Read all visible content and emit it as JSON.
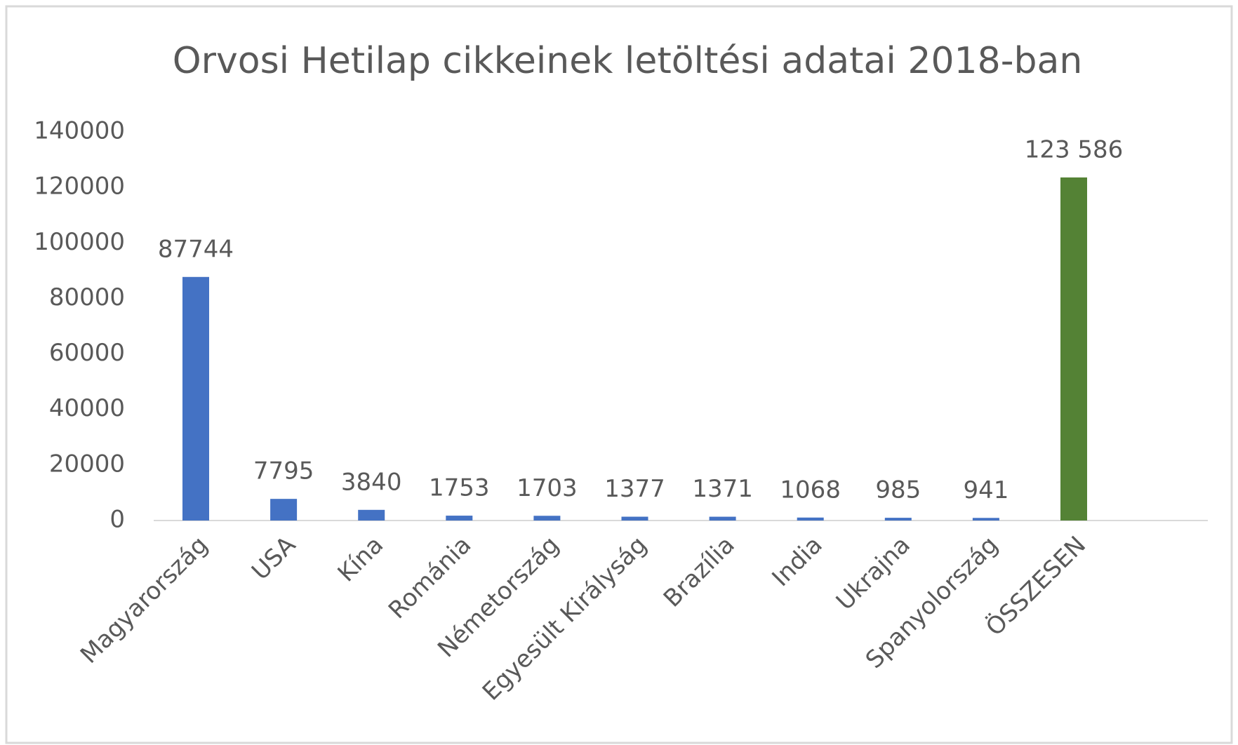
{
  "chart_data": {
    "type": "bar",
    "title": "Orvosi Hetilap cikkeinek letöltési adatai 2018-ban",
    "categories": [
      "Magyarország",
      "USA",
      "Kína",
      "Románia",
      "Németország",
      "Egyesült Királyság",
      "Brazília",
      "India",
      "Ukrajna",
      "Spanyolország",
      "ÖSSZESEN"
    ],
    "values": [
      87744,
      7795,
      3840,
      1753,
      1703,
      1377,
      1371,
      1068,
      985,
      941,
      123586
    ],
    "value_labels": [
      "87744",
      "7795",
      "3840",
      "1753",
      "1703",
      "1377",
      "1371",
      "1068",
      "985",
      "941",
      "123 586"
    ],
    "colors": [
      "#4472c4",
      "#4472c4",
      "#4472c4",
      "#4472c4",
      "#4472c4",
      "#4472c4",
      "#4472c4",
      "#4472c4",
      "#4472c4",
      "#4472c4",
      "#548235"
    ],
    "ylim": [
      0,
      140000
    ],
    "yticks": [
      0,
      20000,
      40000,
      60000,
      80000,
      100000,
      120000,
      140000
    ],
    "grid": false
  }
}
